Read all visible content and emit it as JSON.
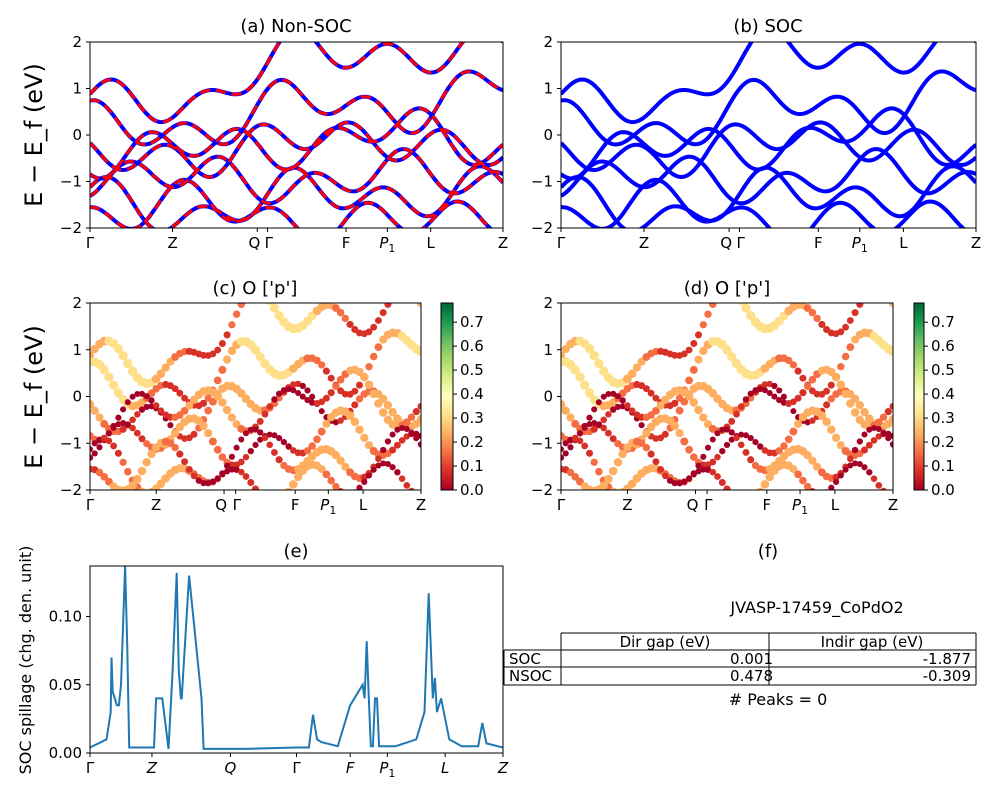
{
  "chart_data": [
    {
      "id": "a",
      "type": "line",
      "title": "(a) Non-SOC",
      "ylabel": "E − E_f (eV)",
      "ylim": [
        -2,
        2
      ],
      "yticks": [
        "2",
        "1",
        "0",
        "−1",
        "−2"
      ],
      "xticks": [
        "Γ",
        "Z",
        "Q",
        "Γ",
        "F",
        "P1",
        "L",
        "Z"
      ],
      "series": [
        {
          "style": "blue solid",
          "color": "#0000ff",
          "values": [
            [
              0.88,
              0.55,
              1.95,
              1.6,
              2.0
            ],
            [
              0.4,
              -0.1,
              0.9,
              0.35,
              1.3
            ],
            [
              -0.35,
              -0.6,
              0.05,
              -0.2,
              -0.3
            ],
            [
              -0.6,
              -0.1,
              -0.4,
              0.3,
              -0.45
            ],
            [
              -1.0,
              -0.75,
              -1.2,
              -0.65,
              -1.15
            ],
            [
              -1.2,
              -1.9,
              -1.05,
              -1.5,
              -0.95
            ],
            [
              -1.9,
              -1.3,
              -2.0,
              -1.75,
              -1.8
            ]
          ]
        },
        {
          "style": "red dashed",
          "color": "#ff0000",
          "values": [
            [
              0.88,
              0.55,
              1.95,
              1.6,
              2.0
            ],
            [
              0.4,
              -0.1,
              0.9,
              0.35,
              1.3
            ],
            [
              -0.35,
              -0.6,
              0.05,
              -0.2,
              -0.3
            ],
            [
              -0.6,
              -0.1,
              -0.4,
              0.3,
              -0.45
            ],
            [
              -1.0,
              -0.75,
              -1.2,
              -0.65,
              -1.15
            ],
            [
              -1.2,
              -1.9,
              -1.05,
              -1.5,
              -0.95
            ],
            [
              -1.9,
              -1.3,
              -2.0,
              -1.75,
              -1.8
            ]
          ]
        }
      ]
    },
    {
      "id": "b",
      "type": "line",
      "title": "(b) SOC",
      "ylim": [
        -2,
        2
      ],
      "yticks": [
        "2",
        "1",
        "0",
        "−1",
        "−2"
      ],
      "xticks": [
        "Γ",
        "Z",
        "Q",
        "Γ",
        "F",
        "P1",
        "L",
        "Z"
      ],
      "series": [
        {
          "color": "#0000ff",
          "values": [
            [
              0.88,
              0.55,
              1.95,
              1.6,
              2.0
            ],
            [
              0.4,
              -0.1,
              0.9,
              0.35,
              1.3
            ],
            [
              -0.35,
              -0.6,
              0.05,
              -0.2,
              -0.3
            ],
            [
              -0.6,
              -0.1,
              -0.4,
              0.3,
              -0.45
            ],
            [
              -1.0,
              -0.75,
              -1.2,
              -0.65,
              -1.15
            ],
            [
              -1.2,
              -1.9,
              -1.05,
              -1.5,
              -0.95
            ],
            [
              -1.9,
              -1.3,
              -2.0,
              -1.75,
              -1.8
            ]
          ]
        }
      ]
    },
    {
      "id": "c",
      "type": "scatter",
      "title": "(c)  O ['p']",
      "ylabel": "E − E_f (eV)",
      "ylim": [
        -2,
        2
      ],
      "yticks": [
        "2",
        "1",
        "0",
        "−1",
        "−2"
      ],
      "xticks": [
        "Γ",
        "Z",
        "Q",
        "Γ",
        "F",
        "P1",
        "L",
        "Z"
      ],
      "colorbar": {
        "cmap": "RdYlGn",
        "ticks": [
          "0.7",
          "0.6",
          "0.5",
          "0.4",
          "0.3",
          "0.2",
          "0.1",
          "0.0"
        ],
        "range": [
          0,
          0.78
        ]
      }
    },
    {
      "id": "d",
      "type": "scatter",
      "title": "(d) O ['p']",
      "ylim": [
        -2,
        2
      ],
      "yticks": [
        "2",
        "1",
        "0",
        "−1",
        "−2"
      ],
      "xticks": [
        "Γ",
        "Z",
        "Q",
        "Γ",
        "F",
        "P1",
        "L",
        "Z"
      ],
      "colorbar": {
        "cmap": "RdYlGn",
        "ticks": [
          "0.7",
          "0.6",
          "0.5",
          "0.4",
          "0.3",
          "0.2",
          "0.1",
          "0.0"
        ],
        "range": [
          0,
          0.78
        ]
      }
    },
    {
      "id": "e",
      "type": "line",
      "title": "(e)",
      "ylabel": "SOC spillage (chg. den. unit)",
      "ylim": [
        0,
        0.137
      ],
      "yticks": [
        "0.10",
        "0.05",
        "0.00"
      ],
      "ytick_values": [
        0.1,
        0.05,
        0.0
      ],
      "xticks": [
        "Γ",
        "Z",
        "Q",
        "Γ",
        "F",
        "P1",
        "L",
        "Z"
      ],
      "series": [
        {
          "color": "#1f77b4",
          "x": [
            0,
            0.04,
            0.05,
            0.052,
            0.055,
            0.06,
            0.065,
            0.07,
            0.075,
            0.085,
            0.09,
            0.095,
            0.1,
            0.11,
            0.155,
            0.16,
            0.175,
            0.19,
            0.2,
            0.21,
            0.215,
            0.22,
            0.222,
            0.24,
            0.27,
            0.275,
            0.28,
            0.3,
            0.33,
            0.34,
            0.35,
            0.375,
            0.5,
            0.53,
            0.54,
            0.55,
            0.56,
            0.6,
            0.625,
            0.63,
            0.66,
            0.665,
            0.67,
            0.675,
            0.68,
            0.685,
            0.69,
            0.695,
            0.7,
            0.71,
            0.74,
            0.79,
            0.8,
            0.81,
            0.82,
            0.83,
            0.835,
            0.84,
            0.85,
            0.86,
            0.87,
            0.9,
            0.94,
            0.95,
            0.96,
            1.0
          ],
          "values": [
            0.004,
            0.01,
            0.03,
            0.07,
            0.045,
            0.04,
            0.035,
            0.035,
            0.05,
            0.137,
            0.08,
            0.004,
            0.004,
            0.004,
            0.004,
            0.04,
            0.04,
            0.003,
            0.06,
            0.132,
            0.06,
            0.04,
            0.04,
            0.13,
            0.04,
            0.003,
            0.003,
            0.003,
            0.003,
            0.003,
            0.003,
            0.003,
            0.004,
            0.004,
            0.028,
            0.01,
            0.008,
            0.005,
            0.03,
            0.035,
            0.05,
            0.04,
            0.082,
            0.04,
            0.005,
            0.005,
            0.04,
            0.04,
            0.005,
            0.005,
            0.005,
            0.01,
            0.02,
            0.03,
            0.117,
            0.04,
            0.055,
            0.03,
            0.04,
            0.025,
            0.01,
            0.005,
            0.005,
            0.022,
            0.007,
            0.004
          ]
        }
      ]
    }
  ],
  "panel_f": {
    "title": "(f)",
    "material": "JVASP-17459_CoPdO2",
    "table": {
      "headers": [
        "",
        "Dir gap (eV)",
        "Indir gap (eV)"
      ],
      "rows": [
        [
          "SOC",
          "0.001",
          "-1.877"
        ],
        [
          "NSOC",
          "0.478",
          "-0.309"
        ]
      ]
    },
    "peaks": "# Peaks = 0"
  }
}
